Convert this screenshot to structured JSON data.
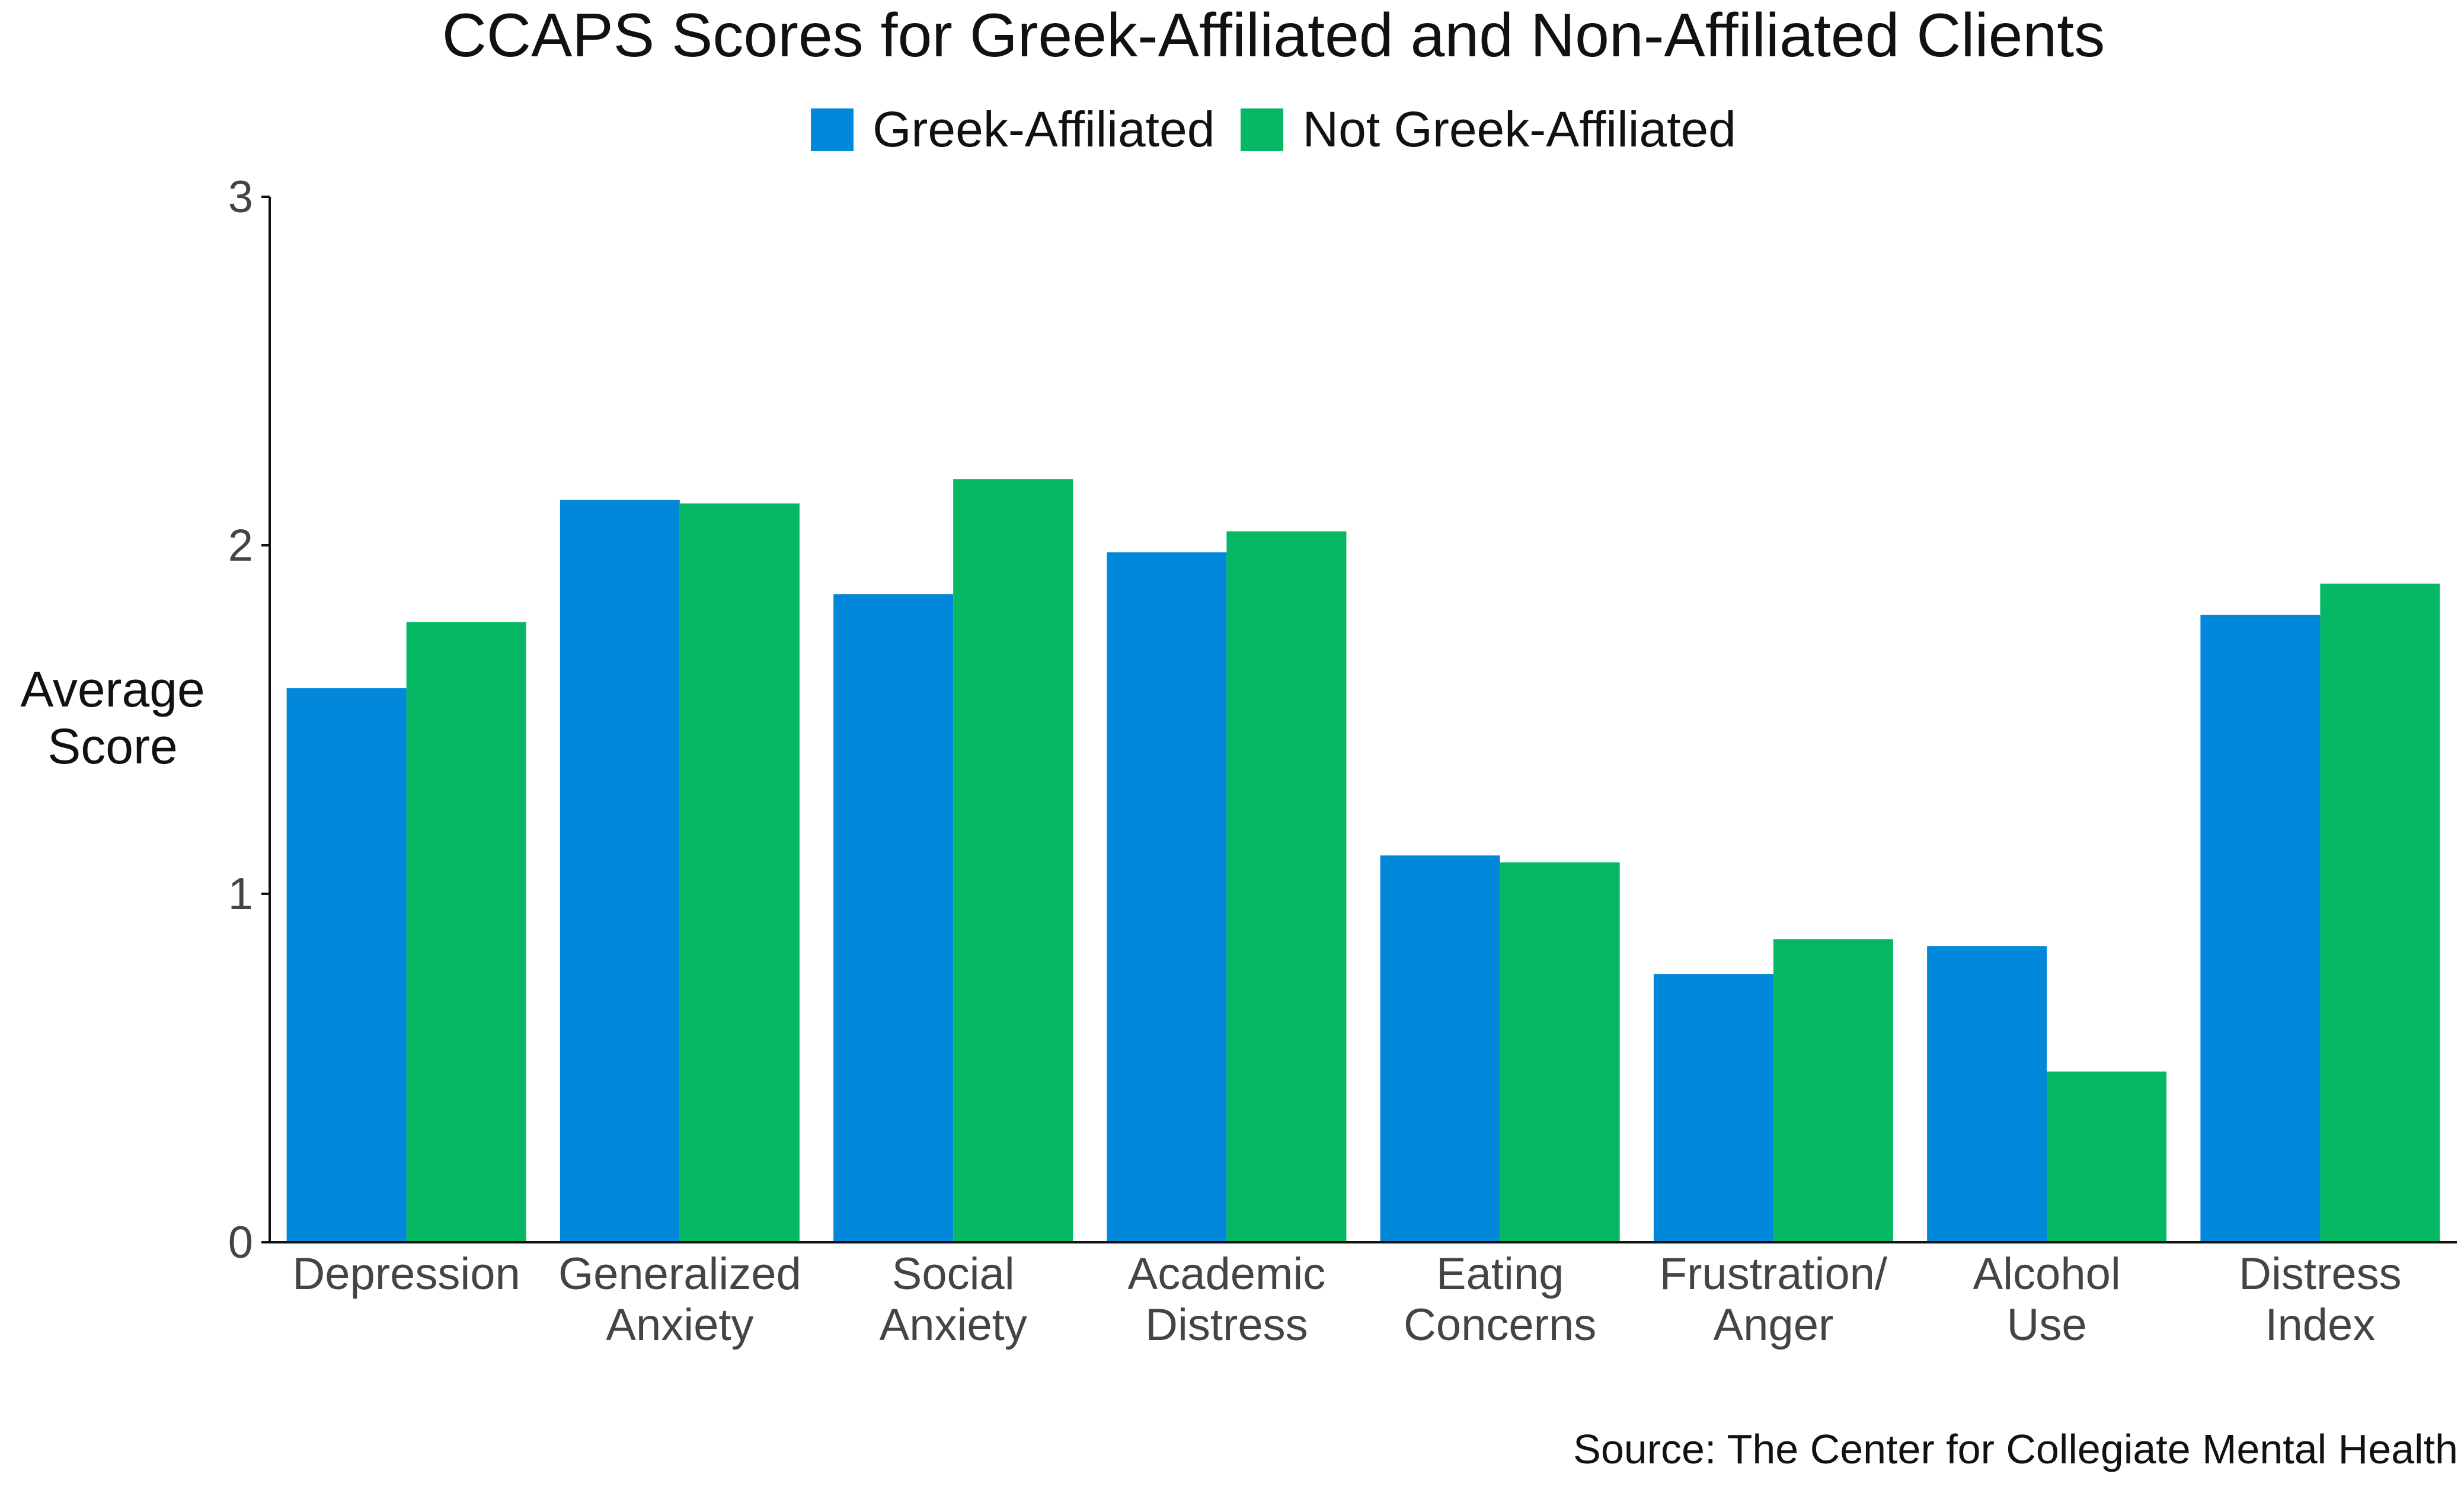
{
  "chart_data": {
    "type": "bar",
    "title": "CCAPS Scores for Greek-Affiliated and Non-Affiliated Clients",
    "ylabel": "Average Score",
    "xlabel": "",
    "ylim": [
      0,
      3
    ],
    "yticks": [
      0,
      1,
      2,
      3
    ],
    "categories": [
      [
        "Depression"
      ],
      [
        "Generalized",
        "Anxiety"
      ],
      [
        "Social",
        "Anxiety"
      ],
      [
        "Academic",
        "Distress"
      ],
      [
        "Eating",
        "Concerns"
      ],
      [
        "Frustration/",
        "Anger"
      ],
      [
        "Alcohol",
        "Use"
      ],
      [
        "Distress",
        "Index"
      ]
    ],
    "series": [
      {
        "name": "Greek-Affiliated",
        "color": "#0288DB",
        "values": [
          1.59,
          2.13,
          1.86,
          1.98,
          1.11,
          0.77,
          0.85,
          1.8
        ]
      },
      {
        "name": "Not Greek-Affiliated",
        "color": "#06B864",
        "values": [
          1.78,
          2.12,
          2.19,
          2.04,
          1.09,
          0.87,
          0.49,
          1.89
        ]
      }
    ],
    "grid": false,
    "legend": "top-center",
    "source": "Source: The Center for Collegiate Mental Health"
  }
}
